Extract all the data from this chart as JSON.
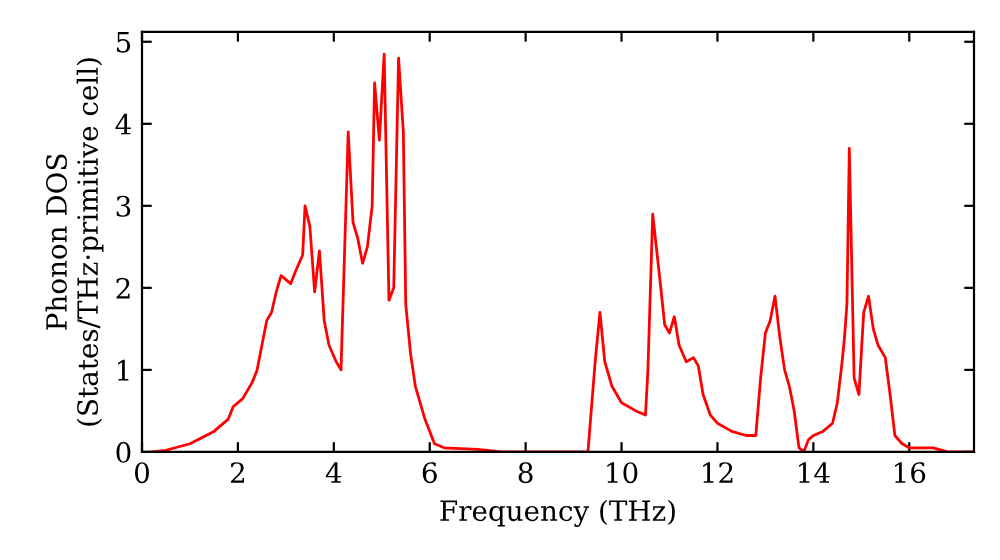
{
  "chart_data": {
    "type": "line",
    "xlabel": "Frequency (THz)",
    "ylabel": "Phonon DOS\n(States/THz·primitive cell)",
    "xlim": [
      0,
      17.35
    ],
    "ylim": [
      0,
      5.12
    ],
    "xticks": [
      0,
      2,
      4,
      6,
      8,
      10,
      12,
      14,
      16
    ],
    "yticks": [
      0,
      1,
      2,
      3,
      4,
      5
    ],
    "grid": false,
    "series": [
      {
        "color": "#ff0000",
        "x": [
          0.2,
          0.5,
          1.0,
          1.5,
          1.8,
          1.9,
          2.1,
          2.3,
          2.4,
          2.5,
          2.6,
          2.7,
          2.8,
          2.9,
          3.0,
          3.1,
          3.2,
          3.35,
          3.4,
          3.5,
          3.6,
          3.7,
          3.8,
          3.9,
          4.05,
          4.15,
          4.3,
          4.4,
          4.5,
          4.6,
          4.7,
          4.8,
          4.85,
          4.95,
          5.05,
          5.15,
          5.25,
          5.35,
          5.45,
          5.5,
          5.6,
          5.7,
          5.9,
          6.1,
          6.3,
          7.0,
          7.5,
          9.3,
          9.45,
          9.55,
          9.65,
          9.8,
          10.0,
          10.3,
          10.5,
          10.55,
          10.65,
          10.8,
          10.9,
          11.0,
          11.1,
          11.2,
          11.35,
          11.5,
          11.6,
          11.7,
          11.85,
          12.0,
          12.3,
          12.6,
          12.8,
          12.9,
          13.0,
          13.1,
          13.2,
          13.3,
          13.4,
          13.5,
          13.6,
          13.7,
          13.8,
          13.9,
          14.0,
          14.2,
          14.4,
          14.5,
          14.6,
          14.65,
          14.7,
          14.75,
          14.85,
          14.95,
          15.05,
          15.15,
          15.25,
          15.35,
          15.5,
          15.6,
          15.7,
          15.85,
          16.0,
          16.5,
          16.8,
          17.3
        ],
        "values": [
          0.0,
          0.02,
          0.1,
          0.25,
          0.4,
          0.55,
          0.65,
          0.85,
          1.0,
          1.3,
          1.6,
          1.7,
          1.95,
          2.15,
          2.1,
          2.05,
          2.2,
          2.4,
          3.0,
          2.75,
          1.95,
          2.45,
          1.6,
          1.3,
          1.1,
          1.0,
          3.9,
          2.8,
          2.6,
          2.3,
          2.5,
          3.0,
          4.5,
          3.8,
          4.85,
          1.85,
          2.0,
          4.8,
          3.9,
          1.8,
          1.2,
          0.8,
          0.4,
          0.1,
          0.05,
          0.03,
          0.0,
          0.0,
          1.1,
          1.7,
          1.1,
          0.8,
          0.6,
          0.5,
          0.45,
          1.0,
          2.9,
          2.1,
          1.55,
          1.45,
          1.65,
          1.3,
          1.1,
          1.15,
          1.05,
          0.7,
          0.45,
          0.35,
          0.25,
          0.2,
          0.2,
          0.9,
          1.45,
          1.6,
          1.9,
          1.4,
          1.0,
          0.8,
          0.5,
          0.05,
          0.0,
          0.15,
          0.2,
          0.25,
          0.35,
          0.6,
          1.1,
          1.4,
          1.8,
          3.7,
          0.9,
          0.7,
          1.7,
          1.9,
          1.5,
          1.3,
          1.15,
          0.7,
          0.2,
          0.1,
          0.05,
          0.05,
          0.0,
          0.0
        ]
      }
    ]
  }
}
